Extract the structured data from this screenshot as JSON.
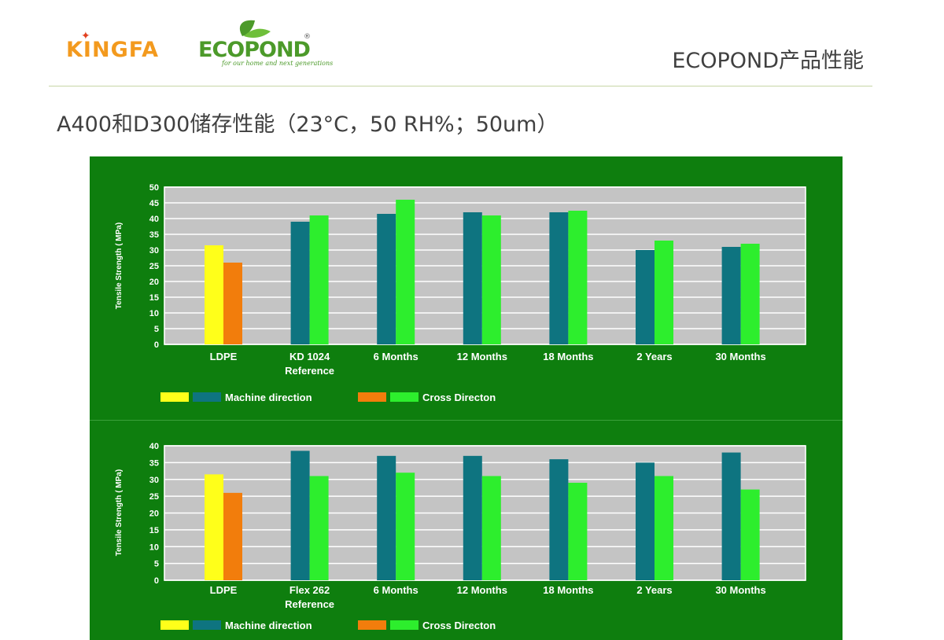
{
  "header": {
    "brand_left": "KINGFA",
    "brand_right": "ECOPOND",
    "brand_right_reg": "®",
    "brand_right_tagline": "for our home and next generations",
    "title": "ECOPOND产品性能"
  },
  "slide": {
    "title": "A400和D300储存性能（23°C，50 RH%；50um）"
  },
  "colors": {
    "panel_bg": "#0e7e0e",
    "plot_bg": "#c4c4c4",
    "ldpe_md": "#ffff1a",
    "ldpe_cd": "#f27d0c",
    "eco_md": "#0e7480",
    "eco_cd": "#2dee2d"
  },
  "legend": {
    "machine_direction": "Machine direction",
    "cross_direction": "Cross Directon"
  },
  "chart_data": [
    {
      "type": "bar",
      "ylabel": "Tensile Strength ( MPa)",
      "xlabel": "",
      "ylim": [
        0,
        50
      ],
      "yticks": [
        0,
        5,
        10,
        15,
        20,
        25,
        30,
        35,
        40,
        45,
        50
      ],
      "categories": [
        [
          "LDPE"
        ],
        [
          "KD 1024",
          "Reference"
        ],
        [
          "6 Months"
        ],
        [
          "12 Months"
        ],
        [
          "18 Months"
        ],
        [
          "2 Years"
        ],
        [
          "30 Months"
        ]
      ],
      "series": [
        {
          "name": "Machine direction",
          "values": [
            31.5,
            39,
            41.5,
            42,
            42,
            30,
            31
          ]
        },
        {
          "name": "Cross Directon",
          "values": [
            26,
            41,
            46,
            41,
            42.5,
            33,
            32
          ]
        }
      ],
      "grid": true,
      "legend_position": "bottom-left"
    },
    {
      "type": "bar",
      "ylabel": "Tensile Strength ( MPa)",
      "xlabel": "",
      "ylim": [
        0,
        40
      ],
      "yticks": [
        0,
        5,
        10,
        15,
        20,
        25,
        30,
        35,
        40
      ],
      "categories": [
        [
          "LDPE"
        ],
        [
          "Flex 262",
          "Reference"
        ],
        [
          "6 Months"
        ],
        [
          "12 Months"
        ],
        [
          "18 Months"
        ],
        [
          "2 Years"
        ],
        [
          "30 Months"
        ]
      ],
      "series": [
        {
          "name": "Machine direction",
          "values": [
            31.5,
            38.5,
            37,
            37,
            36,
            35,
            38
          ]
        },
        {
          "name": "Cross Directon",
          "values": [
            26,
            31,
            32,
            31,
            29,
            31,
            27
          ]
        }
      ],
      "grid": true,
      "legend_position": "bottom-left"
    }
  ]
}
